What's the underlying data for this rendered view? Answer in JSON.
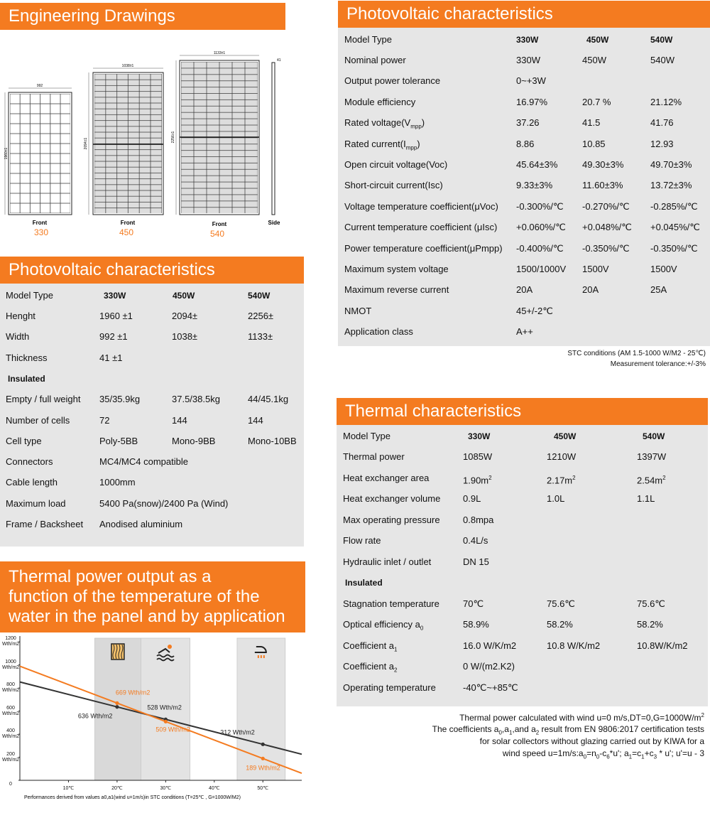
{
  "engineering": {
    "title": "Engineering Drawings",
    "panels": [
      {
        "width": "992",
        "height": "1960±1",
        "view": "Front",
        "model": "330"
      },
      {
        "width": "1038±1",
        "height": "2094±1",
        "view": "Front",
        "model": "450"
      },
      {
        "width": "1133±1",
        "height": "2256±1",
        "view": "Front",
        "model": "540"
      }
    ],
    "side": {
      "thickness": "41",
      "view": "Side"
    }
  },
  "pv_left": {
    "title": "Photovoltaic characteristics",
    "header": [
      "Model Type",
      "330W",
      "450W",
      "540W"
    ],
    "rows": [
      [
        "Henght",
        "1960 ±1",
        "2094±",
        "2256±"
      ],
      [
        "Width",
        "992 ±1",
        "1038±",
        "1133±"
      ],
      [
        "Thickness",
        "41 ±1"
      ],
      [
        "Insulated"
      ],
      [
        "Empty / full weight",
        "35/35.9kg",
        "37.5/38.5kg",
        "44/45.1kg"
      ],
      [
        "Number of cells",
        "72",
        "144",
        "144"
      ],
      [
        "Cell type",
        "Poly-5BB",
        "Mono-9BB",
        "Mono-10BB"
      ],
      [
        "Connectors",
        "MC4/MC4 compatible"
      ],
      [
        "Cable length",
        "1000mm"
      ],
      [
        "Maximum load",
        "5400 Pa(snow)/2400 Pa (Wind)"
      ],
      [
        "Frame / Backsheet",
        "Anodised aluminium"
      ]
    ]
  },
  "pv_right": {
    "title": "Photovoltaic characteristics",
    "header": [
      "Model Type",
      "330W",
      "450W",
      "540W"
    ],
    "rows": [
      [
        "Nominal power",
        "330W",
        "450W",
        "540W"
      ],
      [
        "Output power tolerance",
        "0~+3W"
      ],
      [
        "Module efficiency",
        "16.97%",
        "20.7 %",
        "21.12%"
      ],
      [
        [
          "Rated voltage(V",
          {
            "sub": "mpp"
          },
          ")"
        ],
        "37.26",
        "41.5",
        "41.76"
      ],
      [
        [
          "Rated current(I",
          {
            "sub": "mpp"
          },
          ")"
        ],
        "8.86",
        "10.85",
        "12.93"
      ],
      [
        "Open circuit voltage(Voc)",
        "45.64±3%",
        "49.30±3%",
        "49.70±3%"
      ],
      [
        "Short-circuit current(Isc)",
        "9.33±3%",
        "11.60±3%",
        "13.72±3%"
      ],
      [
        "Voltage temperature coefficient(μVoc)",
        "-0.300%/℃",
        "-0.270%/℃",
        "-0.285%/℃"
      ],
      [
        "Current temperature coefficient (μIsc)",
        "+0.060%/℃",
        "+0.048%/℃",
        "+0.045%/℃"
      ],
      [
        "Power temperature coefficient(μPmpp)",
        "-0.400%/℃",
        "-0.350%/℃",
        "-0.350%/℃"
      ],
      [
        "Maximum system voltage",
        "1500/1000V",
        "1500V",
        "1500V"
      ],
      [
        "Maximum reverse current",
        "20A",
        "20A",
        "25A"
      ],
      [
        "NMOT",
        "45+/-2℃"
      ],
      [
        "Application class",
        "A++"
      ]
    ],
    "notes": [
      "STC conditions (AM 1.5-1000 W/M2 - 25℃)",
      "Measurement tolerance:+/-3%"
    ]
  },
  "thermal": {
    "title": "Thermal characteristics",
    "header": [
      "Model Type",
      "330W",
      "450W",
      "540W"
    ],
    "rows": [
      [
        "Thermal power",
        "1085W",
        "1210W",
        "1397W"
      ],
      [
        "Heat exchanger area",
        [
          "1.90m",
          {
            "sup": "2"
          }
        ],
        [
          "2.17m",
          {
            "sup": "2"
          }
        ],
        [
          "2.54m",
          {
            "sup": "2"
          }
        ]
      ],
      [
        "Heat exchanger volume",
        "0.9L",
        "1.0L",
        "1.1L"
      ],
      [
        "Max operating pressure",
        "0.8mpa"
      ],
      [
        "Flow rate",
        "0.4L/s"
      ],
      [
        "Hydraulic inlet / outlet",
        "DN 15"
      ],
      [
        "Insulated"
      ],
      [
        "Stagnation temperature",
        "70℃",
        "75.6℃",
        "75.6℃"
      ],
      [
        [
          "Optical efficiency a",
          {
            "sub": "0"
          }
        ],
        "58.9%",
        "58.2%",
        "58.2%"
      ],
      [
        [
          "Coefficient a",
          {
            "sub": "1"
          }
        ],
        "16.0 W/K/m2",
        "10.8 W/K/m2",
        "10.8W/K/m2"
      ],
      [
        [
          "Coefficient a",
          {
            "sub": "2"
          }
        ],
        "0 W/(m2.K2)"
      ],
      [
        "Operating temperature",
        "-40℃~+85℃"
      ]
    ],
    "notes": [
      [
        "Thermal power calculated with wind u=0 m/s,DT=0,G=1000W/m",
        {
          "sup": "2"
        }
      ],
      [
        "The coefficients a",
        {
          "sub": "0"
        },
        ",a",
        {
          "sub": "1"
        },
        ",and a",
        {
          "sub": "2"
        },
        " result from EN 9806:2017 certification tests"
      ],
      "for solar collectors without glazing carried out by KIWA for a",
      [
        "wind speed u=1m/s:a",
        {
          "sub": "0"
        },
        "=n",
        {
          "sub": "0"
        },
        "-c",
        {
          "sub": "6"
        },
        "*u'; a",
        {
          "sub": "1"
        },
        "=c",
        {
          "sub": "1"
        },
        "+c",
        {
          "sub": "3"
        },
        " * u'; u'=u - 3"
      ]
    ]
  },
  "chart_data": {
    "type": "line",
    "title": [
      "Thermal power output as a",
      "function of the temperature of the",
      "water in the panel and by application"
    ],
    "xlim": [
      0,
      58
    ],
    "ylim": [
      0,
      1250
    ],
    "xticks": [
      {
        "value": 10,
        "label": "10℃"
      },
      {
        "value": 20,
        "label": "20℃"
      },
      {
        "value": 30,
        "label": "30℃"
      },
      {
        "value": 40,
        "label": "40℃"
      },
      {
        "value": 50,
        "label": "50℃"
      }
    ],
    "yticks": [
      {
        "value": 0,
        "label": "0"
      },
      {
        "value": 200,
        "label": "200\nWth/m2"
      },
      {
        "value": 400,
        "label": "400\nWth/m2"
      },
      {
        "value": 600,
        "label": "600\nWth/m2"
      },
      {
        "value": 800,
        "label": "800\nWth/m2"
      },
      {
        "value": 1000,
        "label": "1000\nWth/m2"
      },
      {
        "value": 1200,
        "label": "1200\nWth/m2"
      }
    ],
    "bands": [
      [
        15.4,
        24.9
      ],
      [
        24.9,
        35
      ],
      [
        44.7,
        54.6
      ]
    ],
    "x": [
      0,
      20,
      30,
      50,
      58
    ],
    "series": [
      {
        "color": "#333333",
        "values": [
          852,
          636,
          528,
          312,
          226
        ],
        "value_labels": [
          null,
          "636 Wth/m2",
          "528 Wth/m2",
          "312 Wth/m2",
          null
        ]
      },
      {
        "color": "#f47b20",
        "values": [
          989,
          669,
          509,
          189,
          61
        ],
        "value_labels": [
          null,
          "669 Wth/m2",
          "509 Wth/m2",
          "189 Wth/m2",
          null
        ]
      }
    ],
    "footnote": "Performances derived from values a0,a1(wind u=1m/s)in STC conditions (T=25℃ , G=1000W/M2)"
  }
}
